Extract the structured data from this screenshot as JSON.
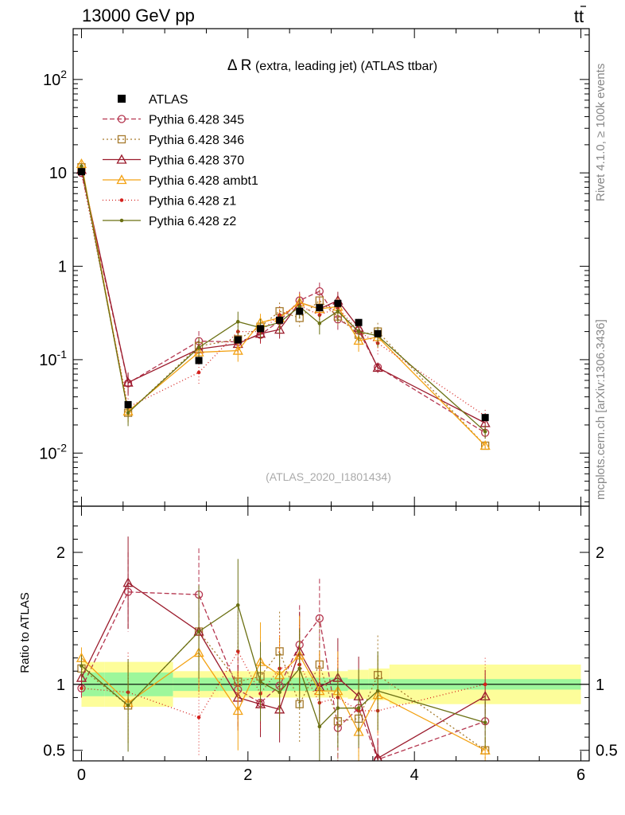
{
  "header": {
    "energy_label": "13000 GeV pp",
    "process_base": "t",
    "process_bar": "t",
    "side_rivet": "Rivet 4.1.0, ≥ 100k events",
    "side_mcplots": "mcplots.cern.ch [arXiv:1306.3436]"
  },
  "main": {
    "title_symbol": "Δ R",
    "title_rest": " (extra, leading jet) (ATLAS ttbar)",
    "watermark": "(ATLAS_2020_I1801434)",
    "ytick_labels": [
      {
        "base": "10",
        "exp": "-2"
      },
      {
        "base": "10",
        "exp": "-1"
      },
      {
        "base": "1",
        "exp": ""
      },
      {
        "base": "10",
        "exp": ""
      },
      {
        "base": "10",
        "exp": "2"
      }
    ]
  },
  "ratio": {
    "ylabel": "Ratio to ATLAS",
    "tick_labels": [
      "0.5",
      "1",
      "2"
    ],
    "xtick_labels": [
      "0",
      "2",
      "4",
      "6"
    ]
  },
  "legend": [
    {
      "label": "ATLAS"
    },
    {
      "label": "Pythia 6.428 345"
    },
    {
      "label": "Pythia 6.428 346"
    },
    {
      "label": "Pythia 6.428 370"
    },
    {
      "label": "Pythia 6.428 ambt1"
    },
    {
      "label": "Pythia 6.428 z1"
    },
    {
      "label": "Pythia 6.428 z2"
    }
  ],
  "chart_data": {
    "type": "line",
    "title": "Δ R (extra, leading jet) (ATLAS ttbar)",
    "xlabel": "",
    "ylabel": "",
    "xlim": [
      -0.1,
      6.1
    ],
    "ylim": [
      0.0027,
      350
    ],
    "yscale": "log",
    "ratio_ylim": [
      0.42,
      2.35
    ],
    "ratio_ylabel": "Ratio to ATLAS",
    "x": [
      0.0,
      0.56,
      1.41,
      1.88,
      2.15,
      2.38,
      2.62,
      2.86,
      3.08,
      3.33,
      3.56,
      4.85
    ],
    "data": {
      "name": "ATLAS",
      "values": [
        10.3,
        0.033,
        0.098,
        0.163,
        0.215,
        0.265,
        0.33,
        0.36,
        0.4,
        0.25,
        0.19,
        0.024
      ],
      "band_edges": [
        0,
        0.28,
        1.1,
        1.65,
        2.0,
        2.25,
        2.5,
        2.75,
        2.97,
        3.2,
        3.45,
        3.7,
        6.0
      ],
      "stat_band": [
        0.09,
        0.09,
        0.05,
        0.05,
        0.05,
        0.05,
        0.05,
        0.05,
        0.05,
        0.04,
        0.04,
        0.04
      ],
      "syst_band": [
        0.17,
        0.17,
        0.1,
        0.1,
        0.1,
        0.1,
        0.1,
        0.1,
        0.1,
        0.11,
        0.12,
        0.15
      ]
    },
    "series": [
      {
        "name": "Pythia 6.428 345",
        "color": "#b5364f",
        "dash": "6,3",
        "marker": "circle",
        "values": [
          10.0,
          0.056,
          0.158,
          0.155,
          0.185,
          0.26,
          0.43,
          0.54,
          0.27,
          0.205,
          0.083,
          0.0165
        ],
        "ratio": [
          0.97,
          1.7,
          1.68,
          0.96,
          0.86,
          0.99,
          1.3,
          1.5,
          0.67,
          0.82,
          0.43,
          0.72
        ],
        "ratio_err": [
          0.08,
          0.3,
          0.35,
          0.3,
          0.25,
          0.25,
          0.3,
          0.3,
          0.3,
          0.3,
          0.15,
          0.2
        ]
      },
      {
        "name": "Pythia 6.428 346",
        "color": "#a67a2c",
        "dash": "2,3",
        "marker": "square",
        "values": [
          11.5,
          0.027,
          0.14,
          0.165,
          0.225,
          0.33,
          0.28,
          0.43,
          0.29,
          0.185,
          0.2,
          0.012
        ],
        "ratio": [
          1.12,
          0.84,
          1.4,
          1.02,
          1.06,
          1.25,
          0.85,
          1.15,
          0.72,
          0.74,
          1.07,
          0.5
        ],
        "ratio_err": [
          0.08,
          0.3,
          0.3,
          0.3,
          0.3,
          0.3,
          0.3,
          0.35,
          0.3,
          0.3,
          0.3,
          0.1
        ]
      },
      {
        "name": "Pythia 6.428 370",
        "color": "#9b1b2c",
        "dash": "",
        "marker": "triangle",
        "values": [
          10.8,
          0.057,
          0.13,
          0.148,
          0.19,
          0.21,
          0.41,
          0.35,
          0.43,
          0.22,
          0.082,
          0.021
        ],
        "ratio": [
          1.05,
          1.77,
          1.4,
          0.9,
          0.85,
          0.81,
          1.25,
          0.98,
          1.05,
          0.91,
          0.44,
          0.91
        ],
        "ratio_err": [
          0.08,
          0.35,
          0.3,
          0.25,
          0.25,
          0.25,
          0.3,
          0.25,
          0.3,
          0.3,
          0.15,
          0.2
        ]
      },
      {
        "name": "Pythia 6.428 ambt1",
        "color": "#f3a214",
        "dash": "",
        "marker": "triangle",
        "values": [
          12.5,
          0.028,
          0.12,
          0.125,
          0.25,
          0.28,
          0.41,
          0.35,
          0.37,
          0.16,
          0.175,
          0.012
        ],
        "ratio": [
          1.2,
          0.86,
          1.24,
          0.8,
          1.17,
          1.07,
          1.22,
          0.95,
          0.95,
          0.64,
          0.92,
          0.5
        ],
        "ratio_err": [
          0.08,
          0.3,
          0.3,
          0.3,
          0.3,
          0.3,
          0.3,
          0.3,
          0.3,
          0.3,
          0.3,
          0.1
        ]
      },
      {
        "name": "Pythia 6.428 z1",
        "color": "#d4201c",
        "dash": "1,3",
        "marker": "dot",
        "values": [
          10.0,
          0.031,
          0.073,
          0.2,
          0.2,
          0.3,
          0.38,
          0.3,
          0.36,
          0.2,
          0.15,
          0.025
        ],
        "ratio": [
          0.97,
          0.94,
          0.75,
          1.25,
          0.93,
          1.12,
          1.15,
          0.86,
          0.9,
          0.8,
          0.8,
          1.0
        ],
        "ratio_err": [
          0.08,
          0.3,
          0.3,
          0.3,
          0.3,
          0.3,
          0.3,
          0.3,
          0.3,
          0.3,
          0.3,
          0.2
        ]
      },
      {
        "name": "Pythia 6.428 z2",
        "color": "#6b7013",
        "dash": "",
        "marker": "dot",
        "values": [
          11.8,
          0.027,
          0.135,
          0.255,
          0.22,
          0.25,
          0.37,
          0.245,
          0.33,
          0.2,
          0.18,
          0.017
        ],
        "ratio": [
          1.14,
          0.84,
          1.4,
          1.6,
          1.02,
          0.94,
          1.12,
          0.68,
          0.82,
          0.82,
          0.95,
          0.71
        ],
        "ratio_err": [
          0.08,
          0.35,
          0.35,
          0.35,
          0.3,
          0.3,
          0.3,
          0.3,
          0.3,
          0.3,
          0.3,
          0.2
        ]
      }
    ]
  }
}
